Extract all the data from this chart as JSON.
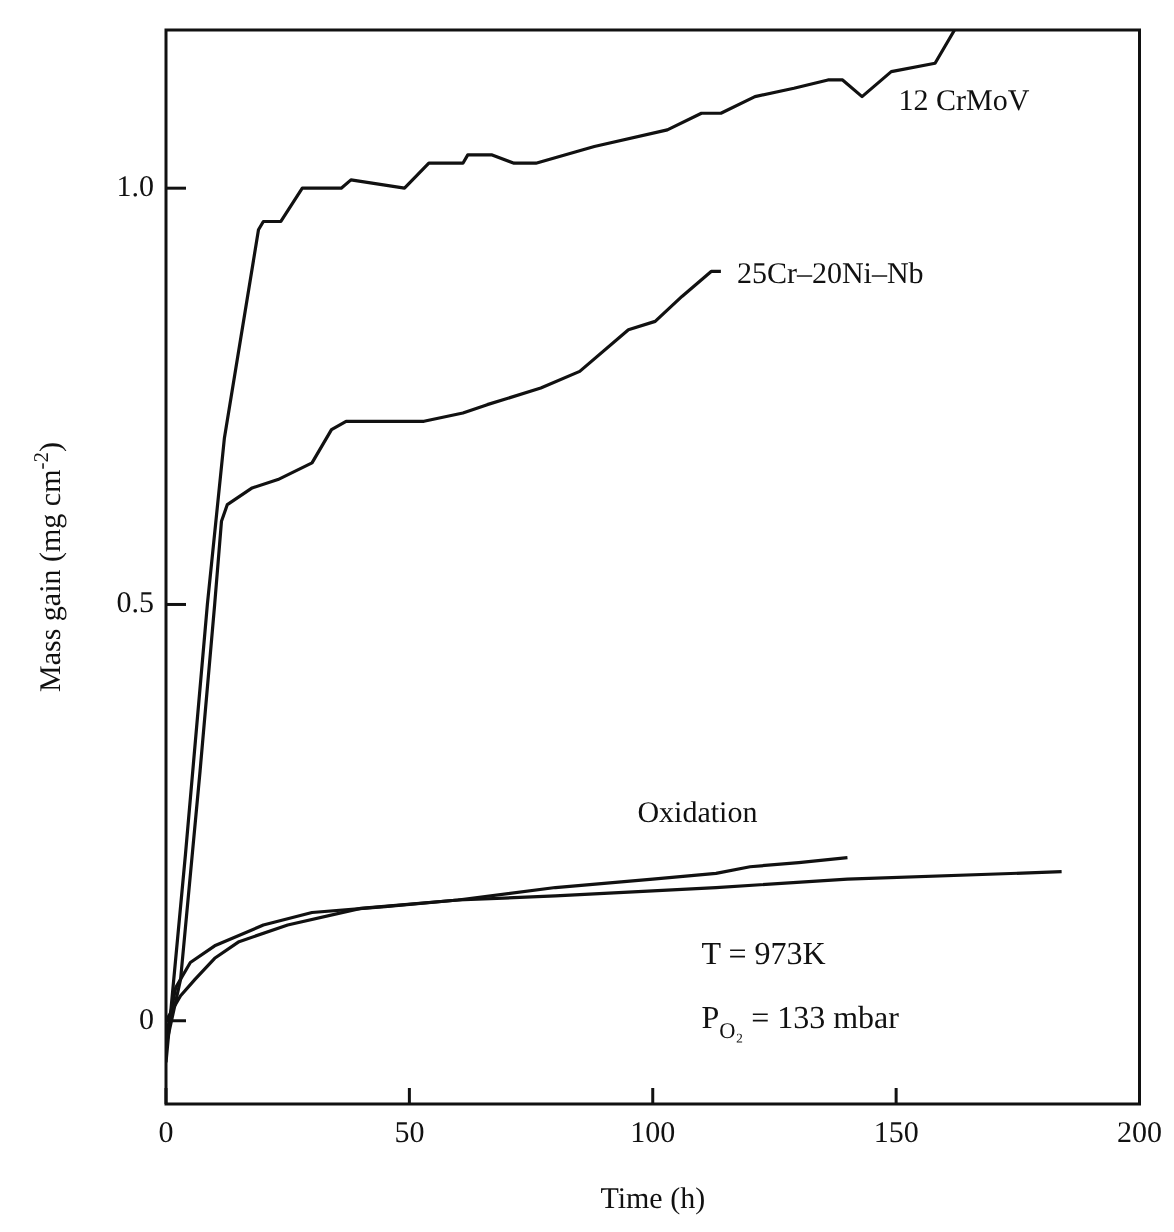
{
  "chart_data": {
    "type": "line",
    "xlabel": "Time (h)",
    "ylabel": "Mass gain (mg cm$^{-2}$)",
    "xlim": [
      0,
      200
    ],
    "xticks": [
      0,
      50,
      100,
      150,
      200
    ],
    "ylim": [
      -0.1,
      1.19
    ],
    "yticks": [
      0,
      {
        "value": 0.5,
        "label": "0.5"
      },
      {
        "value": 1,
        "label": "1.0"
      }
    ],
    "grid": false,
    "legend": false,
    "marker": "none",
    "line_style": "solid",
    "series": [
      {
        "name": "12 CrMoV",
        "color": "#111111",
        "x": [
          0,
          4,
          8.5,
          12,
          19,
          20,
          23.6,
          28,
          36,
          38,
          49,
          54,
          61,
          62,
          67,
          71.5,
          76,
          88,
          103,
          110,
          114,
          121,
          129,
          136,
          139,
          143,
          149,
          158,
          162
        ],
        "values": [
          -0.05,
          0.2,
          0.5,
          0.7,
          0.95,
          0.96,
          0.96,
          1.0,
          1.0,
          1.01,
          1.0,
          1.03,
          1.03,
          1.04,
          1.04,
          1.03,
          1.03,
          1.05,
          1.07,
          1.09,
          1.09,
          1.11,
          1.12,
          1.13,
          1.13,
          1.11,
          1.14,
          1.15,
          1.19
        ]
      },
      {
        "name": "25Cr–20Ni–Nb",
        "color": "#111111",
        "x": [
          0,
          3,
          7,
          10,
          11.4,
          12.6,
          17.7,
          23,
          30,
          34,
          37,
          53,
          61,
          66,
          77,
          85,
          95,
          100.5,
          106,
          112,
          114
        ],
        "values": [
          -0.03,
          0.05,
          0.3,
          0.5,
          0.6,
          0.62,
          0.64,
          0.65,
          0.67,
          0.71,
          0.72,
          0.72,
          0.73,
          0.74,
          0.76,
          0.78,
          0.83,
          0.84,
          0.87,
          0.9,
          0.9
        ]
      },
      {
        "name": "Oxidation",
        "color": "#111111",
        "x": [
          0,
          2,
          5,
          10,
          20,
          30,
          45,
          60,
          80,
          100,
          113,
          120,
          130,
          140
        ],
        "values": [
          -0.02,
          0.04,
          0.07,
          0.09,
          0.115,
          0.13,
          0.137,
          0.145,
          0.16,
          0.17,
          0.177,
          0.185,
          0.19,
          0.196
        ]
      },
      {
        "color": "#111111",
        "x": [
          0,
          3,
          6,
          10,
          15,
          25,
          40,
          60,
          80,
          113,
          140,
          184
        ],
        "values": [
          0,
          0.03,
          0.05,
          0.075,
          0.095,
          0.115,
          0.135,
          0.145,
          0.15,
          0.16,
          0.17,
          0.179
        ]
      }
    ],
    "annotations": [
      "T = 973K",
      "P$_{O₂}$ = 133 mbar"
    ]
  }
}
